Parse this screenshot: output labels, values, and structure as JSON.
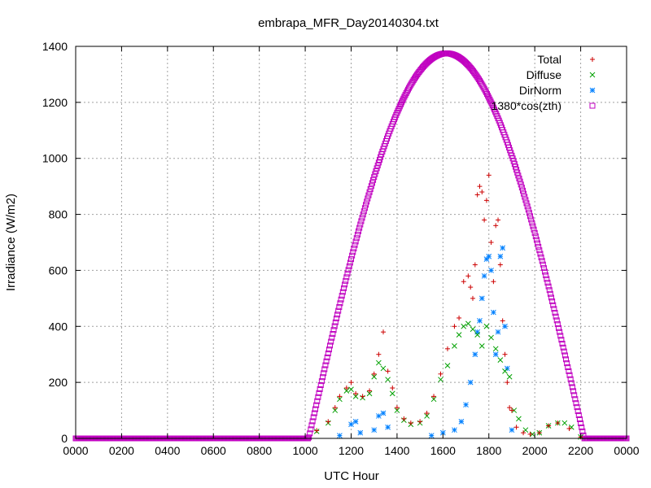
{
  "chart_data": {
    "type": "scatter",
    "title": "embrapa_MFR_Day20140304.txt",
    "xlabel": "UTC Hour",
    "ylabel": "Irradiance (W/m2)",
    "xlim": [
      0,
      24
    ],
    "ylim": [
      0,
      1400
    ],
    "x_tick_labels": [
      "0000",
      "0200",
      "0400",
      "0600",
      "0800",
      "1000",
      "1200",
      "1400",
      "1600",
      "1800",
      "2000",
      "2200",
      "0000"
    ],
    "y_tick_labels": [
      "0",
      "200",
      "400",
      "600",
      "800",
      "1000",
      "1200",
      "1400"
    ],
    "grid": true,
    "legend_position": "top-right",
    "series": [
      {
        "name": "Total",
        "marker": "+",
        "color": "#cc0000",
        "x": [
          10.5,
          11,
          11.3,
          11.5,
          11.8,
          12,
          12.2,
          12.5,
          12.8,
          13,
          13.2,
          13.4,
          13.6,
          13.8,
          14,
          14.3,
          14.6,
          15,
          15.3,
          15.6,
          15.9,
          16.2,
          16.5,
          16.7,
          16.9,
          17.1,
          17.2,
          17.3,
          17.4,
          17.5,
          17.6,
          17.7,
          17.8,
          17.9,
          18,
          18.1,
          18.2,
          18.3,
          18.4,
          18.5,
          18.6,
          18.7,
          18.8,
          18.9,
          19,
          19.2,
          19.5,
          19.8,
          20.2,
          20.6,
          21,
          21.5,
          22
        ],
        "y": [
          28,
          60,
          110,
          150,
          180,
          200,
          160,
          150,
          170,
          230,
          300,
          380,
          240,
          180,
          110,
          70,
          55,
          60,
          90,
          150,
          230,
          320,
          400,
          430,
          560,
          580,
          540,
          500,
          620,
          870,
          900,
          880,
          780,
          850,
          940,
          700,
          560,
          760,
          780,
          620,
          420,
          300,
          200,
          110,
          100,
          40,
          20,
          15,
          20,
          45,
          55,
          35,
          5
        ]
      },
      {
        "name": "Diffuse",
        "marker": "x",
        "color": "#00a000",
        "x": [
          10.5,
          11,
          11.3,
          11.5,
          11.8,
          12,
          12.2,
          12.5,
          12.8,
          13,
          13.2,
          13.4,
          13.6,
          13.8,
          14,
          14.3,
          14.6,
          15,
          15.3,
          15.6,
          15.9,
          16.2,
          16.5,
          16.7,
          16.9,
          17.1,
          17.3,
          17.5,
          17.7,
          17.9,
          18.1,
          18.3,
          18.5,
          18.7,
          18.9,
          19.1,
          19.3,
          19.6,
          19.9,
          20.2,
          20.6,
          21,
          21.3,
          21.6,
          22
        ],
        "y": [
          25,
          55,
          100,
          140,
          170,
          175,
          150,
          145,
          160,
          220,
          270,
          250,
          210,
          160,
          100,
          65,
          50,
          55,
          80,
          140,
          210,
          260,
          330,
          370,
          400,
          410,
          390,
          370,
          330,
          400,
          360,
          320,
          280,
          240,
          220,
          100,
          70,
          30,
          15,
          20,
          45,
          55,
          55,
          40,
          5
        ]
      },
      {
        "name": "DirNorm",
        "marker": "*",
        "color": "#0080ff",
        "x": [
          11.5,
          12,
          12.2,
          12.4,
          13,
          13.2,
          13.4,
          13.6,
          15.5,
          16,
          16.5,
          16.8,
          17,
          17.2,
          17.4,
          17.5,
          17.6,
          17.7,
          17.8,
          17.9,
          18,
          18.1,
          18.2,
          18.3,
          18.4,
          18.5,
          18.6,
          18.7,
          18.8,
          19
        ],
        "y": [
          10,
          50,
          60,
          20,
          30,
          80,
          90,
          40,
          10,
          20,
          30,
          60,
          120,
          200,
          300,
          380,
          420,
          500,
          580,
          640,
          650,
          600,
          450,
          300,
          380,
          650,
          680,
          400,
          250,
          30
        ]
      },
      {
        "name": "1380*cos(zth)",
        "marker": "square",
        "color": "#c000c0",
        "sunrise": 10.15,
        "sunset": 22.15,
        "peak": 1375
      }
    ]
  }
}
